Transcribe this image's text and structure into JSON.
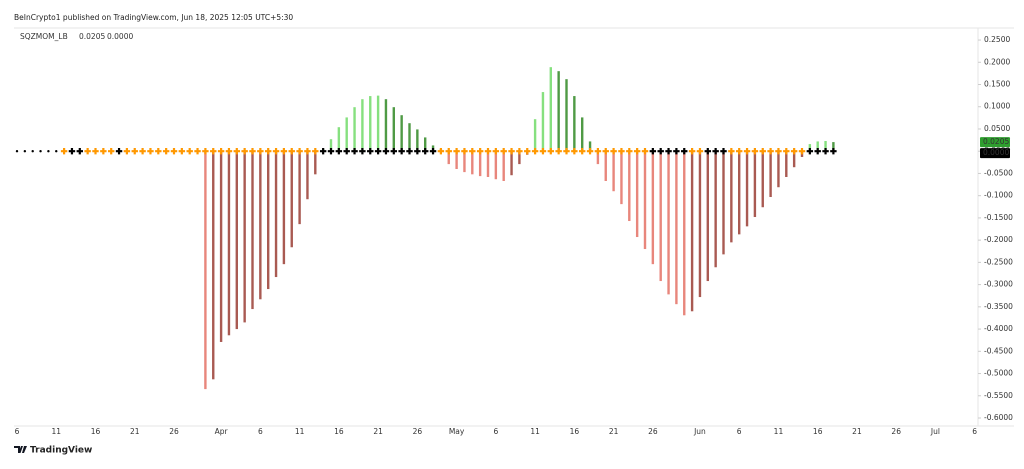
{
  "header": {
    "text": "BeInCrypto1 published on TradingView.com, Jun 18, 2025 12:05 UTC+5:30"
  },
  "footer": {
    "brand": "TradingView"
  },
  "chart_data": {
    "type": "bar",
    "title": "SQZMOM_LB",
    "ylim": [
      -0.62,
      0.28
    ],
    "yticks": [
      {
        "value": 0.25,
        "label": "0.2500"
      },
      {
        "value": 0.2,
        "label": "0.2000"
      },
      {
        "value": 0.15,
        "label": "0.1500"
      },
      {
        "value": 0.1,
        "label": "0.1000"
      },
      {
        "value": 0.05,
        "label": "0.0500"
      },
      {
        "value": 0,
        "label": "0.0000"
      },
      {
        "value": -0.05,
        "label": "-0.0500"
      },
      {
        "value": -0.1,
        "label": "-0.1000"
      },
      {
        "value": -0.15,
        "label": "-0.1500"
      },
      {
        "value": -0.2,
        "label": "-0.2000"
      },
      {
        "value": -0.25,
        "label": "-0.2500"
      },
      {
        "value": -0.3,
        "label": "-0.3000"
      },
      {
        "value": -0.35,
        "label": "-0.3500"
      },
      {
        "value": -0.4,
        "label": "-0.4000"
      },
      {
        "value": -0.45,
        "label": "-0.4500"
      },
      {
        "value": -0.5,
        "label": "-0.5000"
      },
      {
        "value": -0.55,
        "label": "-0.5500"
      },
      {
        "value": -0.6,
        "label": "-0.6000"
      }
    ],
    "grid": false,
    "colors": {
      "positive_rising": "#86e07f",
      "positive_falling": "#4f9a45",
      "negative_falling": "#e8867c",
      "negative_rising": "#a95a52"
    },
    "categories": [
      "6",
      null,
      null,
      null,
      null,
      "11",
      null,
      null,
      null,
      null,
      "16",
      null,
      null,
      null,
      null,
      "21",
      null,
      null,
      null,
      null,
      "26",
      null,
      null,
      null,
      null,
      null,
      "Apr",
      null,
      null,
      null,
      null,
      "6",
      null,
      null,
      null,
      null,
      "11",
      null,
      null,
      null,
      null,
      "16",
      null,
      null,
      null,
      null,
      "21",
      null,
      null,
      null,
      null,
      "26",
      null,
      null,
      null,
      null,
      "May",
      null,
      null,
      null,
      null,
      "6",
      null,
      null,
      null,
      null,
      "11",
      null,
      null,
      null,
      null,
      "16",
      null,
      null,
      null,
      null,
      "21",
      null,
      null,
      null,
      null,
      "26",
      null,
      null,
      null,
      null,
      null,
      "Jun",
      null,
      null,
      null,
      null,
      "6",
      null,
      null,
      null,
      null,
      "11",
      null,
      null,
      null,
      null,
      "16",
      null,
      null,
      null,
      null,
      "21",
      null,
      null,
      null,
      null,
      "26",
      null,
      null,
      null,
      null,
      "Jul",
      null,
      null,
      null,
      null,
      "6"
    ],
    "series": [
      {
        "kind": "histogram",
        "values": [
          null,
          null,
          null,
          null,
          null,
          null,
          null,
          null,
          null,
          null,
          null,
          null,
          null,
          null,
          null,
          null,
          null,
          null,
          null,
          null,
          null,
          null,
          null,
          null,
          -0.535,
          -0.513,
          -0.429,
          -0.414,
          -0.4,
          -0.385,
          -0.355,
          -0.333,
          -0.31,
          -0.283,
          -0.254,
          -0.216,
          -0.164,
          -0.108,
          -0.052,
          0.005,
          0.027,
          0.054,
          0.076,
          0.099,
          0.117,
          0.124,
          0.125,
          0.117,
          0.099,
          0.081,
          0.063,
          0.049,
          0.031,
          0.013,
          0.004,
          -0.029,
          -0.04,
          -0.047,
          -0.052,
          -0.056,
          -0.058,
          -0.063,
          -0.067,
          -0.054,
          -0.029,
          -0.008,
          0.072,
          0.133,
          0.189,
          0.18,
          0.162,
          0.124,
          0.076,
          0.022,
          -0.029,
          -0.067,
          -0.09,
          -0.119,
          -0.157,
          -0.193,
          -0.22,
          -0.254,
          -0.292,
          -0.322,
          -0.344,
          -0.369,
          -0.36,
          -0.328,
          -0.292,
          -0.261,
          -0.232,
          -0.205,
          -0.187,
          -0.169,
          -0.148,
          -0.126,
          -0.103,
          -0.081,
          -0.058,
          -0.036,
          -0.013,
          0.016,
          0.022,
          0.023,
          0.0205,
          null,
          null,
          null,
          null,
          null,
          null,
          null,
          null,
          null,
          null,
          null,
          null,
          null,
          null,
          null,
          null,
          null,
          null
        ],
        "value_labels": [
          null,
          null,
          null,
          null,
          null,
          null,
          null,
          null,
          null,
          null,
          null,
          null,
          null,
          null,
          null,
          null,
          null,
          null,
          null,
          null,
          null,
          null,
          null,
          null,
          null,
          null,
          null,
          null,
          null,
          null,
          null,
          null,
          null,
          null,
          null,
          null,
          null,
          null,
          null,
          null,
          null,
          null,
          null,
          null,
          null,
          null,
          null,
          null,
          null,
          null,
          null,
          null,
          null,
          null,
          null,
          null,
          null,
          null,
          null,
          null,
          null,
          null,
          null,
          null,
          null,
          null,
          null,
          null,
          null,
          null,
          null,
          null,
          null,
          null,
          null,
          null,
          null,
          null,
          null,
          null,
          null,
          null,
          null,
          null,
          null,
          null,
          null,
          null,
          null,
          null,
          null,
          null,
          null,
          null,
          null,
          null,
          null,
          null,
          null,
          null,
          null,
          null,
          null,
          null,
          "0.0205",
          null,
          null,
          null,
          null,
          null,
          null,
          null,
          null,
          null,
          null,
          null,
          null,
          null,
          null,
          null,
          null,
          null,
          null
        ],
        "label_color": "#2e9e2e"
      },
      {
        "kind": "dot",
        "color": "#000000",
        "values": [
          0,
          0,
          0,
          0,
          0,
          0,
          null,
          null,
          null,
          null,
          null,
          null,
          null,
          null,
          null,
          null,
          null,
          null,
          null,
          null,
          null,
          null,
          null,
          null,
          null,
          null,
          null,
          null,
          null,
          null,
          null,
          null,
          null,
          null,
          null,
          null,
          null,
          null,
          null,
          null,
          null,
          null,
          null,
          null,
          null,
          null,
          null,
          null,
          null,
          null,
          null,
          null,
          null,
          null,
          null,
          null,
          null,
          null,
          null,
          null,
          null,
          null,
          null,
          null,
          null,
          null,
          null,
          null,
          null,
          null,
          null,
          null,
          null,
          null,
          null,
          null,
          null,
          null,
          null,
          null,
          null,
          null,
          null,
          null,
          null,
          null,
          null,
          null,
          null,
          null,
          null,
          null,
          null,
          null,
          null,
          null,
          null,
          null,
          null,
          null,
          null,
          null,
          null,
          null,
          null,
          null,
          null,
          null,
          null,
          null,
          null,
          null,
          null,
          null,
          null,
          null,
          null,
          null,
          null,
          null,
          null,
          null,
          null
        ]
      },
      {
        "kind": "cross",
        "values": [
          null,
          null,
          null,
          null,
          null,
          null,
          0,
          0,
          0,
          0,
          0,
          0,
          0,
          0,
          0,
          0,
          0,
          0,
          0,
          0,
          0,
          0,
          0,
          0,
          0,
          0,
          0,
          0,
          0,
          0,
          0,
          0,
          0,
          0,
          0,
          0,
          0,
          0,
          0,
          0,
          0,
          0,
          0,
          0,
          0,
          0,
          0,
          0,
          0,
          0,
          0,
          0,
          0,
          0,
          0,
          0,
          0,
          0,
          0,
          0,
          0,
          0,
          0,
          0,
          0,
          0,
          0,
          0,
          0,
          0,
          0,
          0,
          0,
          0,
          0,
          0,
          0,
          0,
          0,
          0,
          0,
          0,
          0,
          0,
          0,
          0,
          0,
          0,
          0,
          0,
          0,
          0,
          0,
          0,
          0,
          0,
          0,
          0,
          0,
          0,
          0,
          0,
          0,
          0,
          0,
          null,
          null,
          null,
          null,
          null,
          null,
          null,
          null,
          null,
          null,
          null,
          null,
          null,
          null,
          null,
          null,
          null,
          null
        ],
        "colors": [
          null,
          null,
          null,
          null,
          null,
          null,
          "#ff9800",
          "#000000",
          "#000000",
          "#ff9800",
          "#ff9800",
          "#ff9800",
          "#ff9800",
          "#000000",
          "#ff9800",
          "#ff9800",
          "#ff9800",
          "#ff9800",
          "#ff9800",
          "#ff9800",
          "#ff9800",
          "#ff9800",
          "#ff9800",
          "#ff9800",
          "#ff9800",
          "#ff9800",
          "#ff9800",
          "#ff9800",
          "#ff9800",
          "#ff9800",
          "#ff9800",
          "#ff9800",
          "#ff9800",
          "#ff9800",
          "#ff9800",
          "#ff9800",
          "#ff9800",
          "#ff9800",
          "#ff9800",
          "#000000",
          "#000000",
          "#000000",
          "#000000",
          "#000000",
          "#000000",
          "#000000",
          "#000000",
          "#000000",
          "#000000",
          "#000000",
          "#000000",
          "#000000",
          "#000000",
          "#000000",
          "#ff9800",
          "#ff9800",
          "#ff9800",
          "#ff9800",
          "#ff9800",
          "#ff9800",
          "#ff9800",
          "#ff9800",
          "#ff9800",
          "#ff9800",
          "#ff9800",
          "#ff9800",
          "#ff9800",
          "#ff9800",
          "#ff9800",
          "#ff9800",
          "#ff9800",
          "#ff9800",
          "#ff9800",
          "#ff9800",
          "#ff9800",
          "#ff9800",
          "#ff9800",
          "#ff9800",
          "#ff9800",
          "#ff9800",
          "#ff9800",
          "#000000",
          "#000000",
          "#000000",
          "#000000",
          "#000000",
          "#ff9800",
          "#ff9800",
          "#000000",
          "#000000",
          "#000000",
          "#ff9800",
          "#ff9800",
          "#ff9800",
          "#ff9800",
          "#ff9800",
          "#ff9800",
          "#ff9800",
          "#ff9800",
          "#ff9800",
          "#ff9800",
          "#000000",
          "#000000",
          "#000000",
          "#000000",
          null,
          null,
          null,
          null,
          null,
          null,
          null,
          null,
          null,
          null,
          null,
          null,
          null,
          null,
          null,
          null,
          null,
          null
        ],
        "value_labels": [
          null,
          null,
          null,
          null,
          null,
          null,
          null,
          null,
          null,
          null,
          null,
          null,
          null,
          null,
          null,
          null,
          null,
          null,
          null,
          null,
          null,
          null,
          null,
          null,
          null,
          null,
          null,
          null,
          null,
          null,
          null,
          null,
          null,
          null,
          null,
          null,
          null,
          null,
          null,
          null,
          null,
          null,
          null,
          null,
          null,
          null,
          null,
          null,
          null,
          null,
          null,
          null,
          null,
          null,
          null,
          null,
          null,
          null,
          null,
          null,
          null,
          null,
          null,
          null,
          null,
          null,
          null,
          null,
          null,
          null,
          null,
          null,
          null,
          null,
          null,
          null,
          null,
          null,
          null,
          null,
          null,
          null,
          null,
          null,
          null,
          null,
          null,
          null,
          null,
          null,
          null,
          null,
          null,
          null,
          null,
          null,
          null,
          null,
          null,
          null,
          null,
          null,
          null,
          null,
          "0.0000",
          null,
          null,
          null,
          null,
          null,
          null,
          null,
          null,
          null,
          null,
          null,
          null,
          null,
          null,
          null,
          null,
          null,
          null
        ],
        "label_color": "#000000"
      }
    ]
  }
}
